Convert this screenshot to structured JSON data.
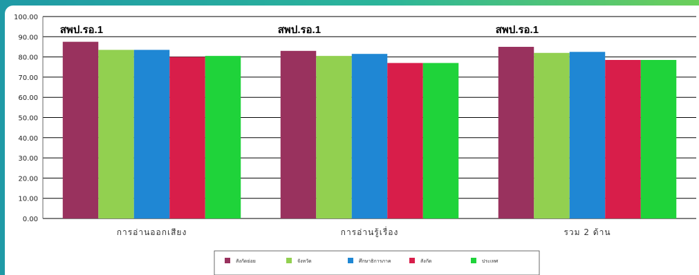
{
  "colors": {
    "frame_start": "#1f9aa6",
    "frame_end": "#6ccf5a",
    "grid": "#000000"
  },
  "chart_data": {
    "type": "bar",
    "categories": [
      "การอ่านออกเสียง",
      "การอ่านรู้เรื่อง",
      "รวม 2 ด้าน"
    ],
    "ylim": [
      0,
      100
    ],
    "yticks": [
      "0.00",
      "10.00",
      "20.00",
      "30.00",
      "40.00",
      "50.00",
      "60.00",
      "70.00",
      "80.00",
      "90.00",
      "100.00"
    ],
    "series": [
      {
        "name": "สังกัดย่อย",
        "color": "#99325e",
        "values": [
          87.5,
          83.0,
          85.0
        ]
      },
      {
        "name": "จังหวัด",
        "color": "#92d050",
        "values": [
          83.5,
          80.5,
          82.0
        ]
      },
      {
        "name": "ศึกษาธิการภาค",
        "color": "#1f87d4",
        "values": [
          83.5,
          81.5,
          82.5
        ]
      },
      {
        "name": "สังกัด",
        "color": "#d81e4a",
        "values": [
          80.0,
          77.0,
          78.5
        ]
      },
      {
        "name": "ประเทศ",
        "color": "#1fd33a",
        "values": [
          80.5,
          77.0,
          78.5
        ]
      }
    ],
    "annotations": [
      "สพป.รอ.1",
      "สพป.รอ.1",
      "สพป.รอ.1"
    ],
    "grid": true,
    "legend_position": "bottom-center"
  }
}
